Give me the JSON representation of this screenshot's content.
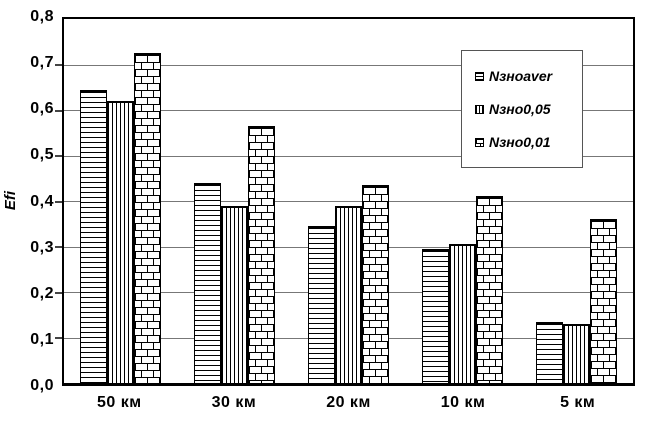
{
  "chart_data": {
    "type": "bar",
    "title": "",
    "xlabel": "",
    "ylabel": "Efi",
    "ylim": [
      0,
      0.8
    ],
    "ytick_step": 0.1,
    "ytick_labels_top_to_bottom": [
      "0,8",
      "0,7",
      "0,6",
      "0,5",
      "0,4",
      "0,3",
      "0,2",
      "0,1",
      "0,0"
    ],
    "categories": [
      "50 км",
      "30 км",
      "20 км",
      "10 км",
      "5 км"
    ],
    "series": [
      {
        "name": "Nзноaver",
        "pattern": "horizontal-lines",
        "values": [
          0.645,
          0.44,
          0.345,
          0.295,
          0.135
        ]
      },
      {
        "name": "Nзно0,05",
        "pattern": "vertical-lines",
        "values": [
          0.62,
          0.39,
          0.39,
          0.305,
          0.13
        ]
      },
      {
        "name": "Nзно0,01",
        "pattern": "brick",
        "values": [
          0.725,
          0.565,
          0.435,
          0.41,
          0.36
        ]
      }
    ],
    "grid": "horizontal",
    "legend_position": "upper-right",
    "colors": {
      "foreground": "#000000",
      "background": "#ffffff",
      "gridline": "#777777"
    }
  }
}
